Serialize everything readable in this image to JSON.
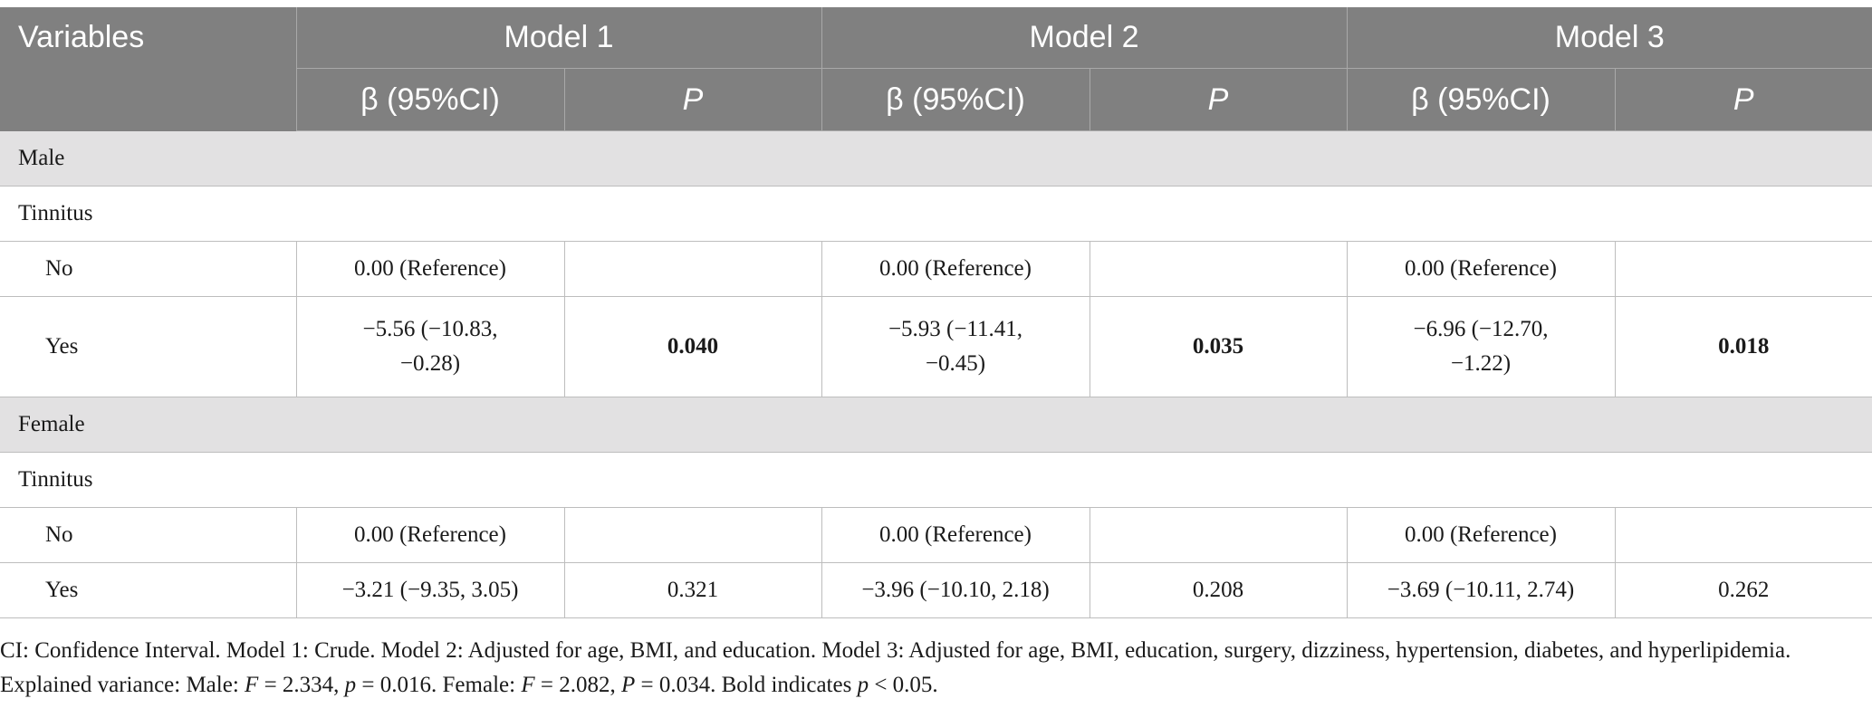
{
  "table": {
    "header": {
      "variables": "Variables",
      "models": [
        "Model 1",
        "Model 2",
        "Model 3"
      ],
      "beta_label": "β (95%CI)",
      "p_label": "P"
    },
    "sections": [
      {
        "label": "Male",
        "subhead": "Tinnitus",
        "rows": [
          {
            "label": "No",
            "cells": [
              {
                "beta": "0.00 (Reference)",
                "p": "",
                "bold": false
              },
              {
                "beta": "0.00 (Reference)",
                "p": "",
                "bold": false
              },
              {
                "beta": "0.00 (Reference)",
                "p": "",
                "bold": false
              }
            ]
          },
          {
            "label": "Yes",
            "cells": [
              {
                "beta": "−5.56 (−10.83, −0.28)",
                "p": "0.040",
                "bold": true
              },
              {
                "beta": "−5.93 (−11.41, −0.45)",
                "p": "0.035",
                "bold": true
              },
              {
                "beta": "−6.96 (−12.70, −1.22)",
                "p": "0.018",
                "bold": true
              }
            ]
          }
        ]
      },
      {
        "label": "Female",
        "subhead": "Tinnitus",
        "rows": [
          {
            "label": "No",
            "cells": [
              {
                "beta": "0.00 (Reference)",
                "p": "",
                "bold": false
              },
              {
                "beta": "0.00 (Reference)",
                "p": "",
                "bold": false
              },
              {
                "beta": "0.00 (Reference)",
                "p": "",
                "bold": false
              }
            ]
          },
          {
            "label": "Yes",
            "cells": [
              {
                "beta": "−3.21 (−9.35, 3.05)",
                "p": "0.321",
                "bold": false
              },
              {
                "beta": "−3.96 (−10.10, 2.18)",
                "p": "0.208",
                "bold": false
              },
              {
                "beta": "−3.69 (−10.11, 2.74)",
                "p": "0.262",
                "bold": false
              }
            ]
          }
        ]
      }
    ]
  },
  "footnote": {
    "intro": "CI: Confidence Interval. Model 1: Crude. Model 2: Adjusted for age, BMI, and education. Model 3: Adjusted for age, BMI, education, surgery, dizziness, hypertension, diabetes, and hyperlipidemia. Explained variance: Male: ",
    "male_f": "F",
    "male_f_value": " = 2.334, ",
    "male_p": "p",
    "male_p_value": " = 0.016. Female: ",
    "female_f": "F",
    "female_f_value": " = 2.082, ",
    "female_p": "P",
    "female_p_value": " = 0.034. Bold indicates ",
    "bold_p": "p",
    "bold_p_value": " < 0.05."
  }
}
